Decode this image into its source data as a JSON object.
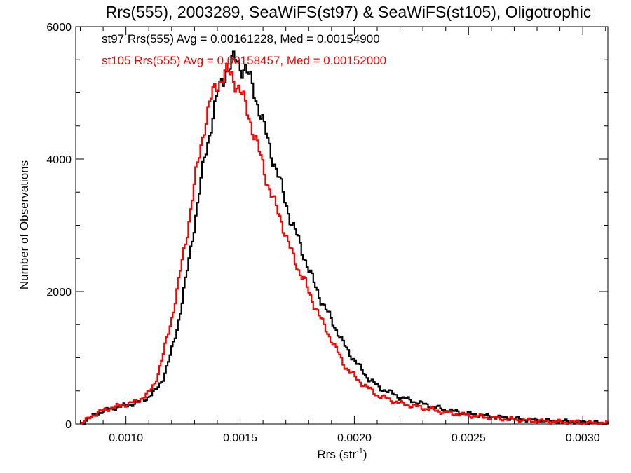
{
  "chart_data": {
    "type": "line",
    "title": "Rrs(555), 2003289, SeaWiFS(st97) & SeaWiFS(st105), Oligotrophic",
    "xlabel": "Rrs (str",
    "xlabel_sup": "-1",
    "xlabel_close": ")",
    "ylabel": "Number of Observations",
    "xlim": [
      0.00078,
      0.00311
    ],
    "ylim": [
      0,
      6000
    ],
    "x_ticks": [
      0.001,
      0.0015,
      0.002,
      0.0025,
      0.003
    ],
    "x_tick_labels": [
      "0.0010",
      "0.0015",
      "0.0020",
      "0.0025",
      "0.0030"
    ],
    "y_ticks": [
      0,
      2000,
      4000,
      6000
    ],
    "y_tick_labels": [
      "0",
      "2000",
      "4000",
      "6000"
    ],
    "grid": false,
    "step": true,
    "annotations": [
      {
        "text": "st97 Rrs(555) Avg = 0.00161228, Med = 0.00154900",
        "color": "#000000"
      },
      {
        "text": "st105 Rrs(555) Avg = 0.00158457, Med = 0.00152000",
        "color": "#ff0000"
      }
    ],
    "series": [
      {
        "name": "st97",
        "color": "#000000",
        "x": [
          0.0008,
          0.00085,
          0.0009,
          0.00095,
          0.001,
          0.00105,
          0.0011,
          0.00113,
          0.00116,
          0.00118,
          0.0012,
          0.00122,
          0.00124,
          0.00126,
          0.00128,
          0.0013,
          0.00132,
          0.00134,
          0.00136,
          0.00138,
          0.0014,
          0.00142,
          0.00144,
          0.00146,
          0.00148,
          0.0015,
          0.00152,
          0.00154,
          0.00156,
          0.00158,
          0.0016,
          0.00162,
          0.00165,
          0.00168,
          0.0017,
          0.00172,
          0.00175,
          0.00178,
          0.0018,
          0.00183,
          0.00186,
          0.0019,
          0.00195,
          0.002,
          0.00205,
          0.0021,
          0.0022,
          0.0023,
          0.0024,
          0.0025,
          0.0026,
          0.0027,
          0.0028,
          0.0029,
          0.003,
          0.00311
        ],
        "y": [
          0,
          120,
          200,
          250,
          280,
          330,
          420,
          520,
          700,
          900,
          1150,
          1450,
          1800,
          2200,
          2650,
          3100,
          3550,
          4000,
          4350,
          4700,
          5000,
          5200,
          5350,
          5450,
          5500,
          5400,
          5350,
          5200,
          5000,
          4750,
          4500,
          4250,
          3900,
          3550,
          3300,
          3050,
          2800,
          2500,
          2300,
          2050,
          1800,
          1550,
          1200,
          950,
          720,
          560,
          400,
          300,
          210,
          150,
          110,
          80,
          55,
          40,
          25,
          10
        ]
      },
      {
        "name": "st105",
        "color": "#ff0000",
        "x": [
          0.0008,
          0.00085,
          0.0009,
          0.00095,
          0.001,
          0.00105,
          0.0011,
          0.00112,
          0.00114,
          0.00116,
          0.00118,
          0.0012,
          0.00122,
          0.00124,
          0.00126,
          0.00128,
          0.0013,
          0.00132,
          0.00134,
          0.00136,
          0.00138,
          0.0014,
          0.00142,
          0.00144,
          0.00146,
          0.00148,
          0.0015,
          0.00152,
          0.00154,
          0.00156,
          0.00158,
          0.0016,
          0.00162,
          0.00165,
          0.00168,
          0.0017,
          0.00172,
          0.00175,
          0.00178,
          0.0018,
          0.00183,
          0.00186,
          0.0019,
          0.00195,
          0.002,
          0.00205,
          0.0021,
          0.0022,
          0.0023,
          0.0024,
          0.0025,
          0.0026,
          0.0027,
          0.0028,
          0.0029,
          0.003,
          0.00311
        ],
        "y": [
          0,
          130,
          210,
          260,
          300,
          350,
          480,
          600,
          800,
          1050,
          1350,
          1650,
          2000,
          2400,
          2800,
          3250,
          3700,
          4100,
          4500,
          4800,
          5000,
          5150,
          5250,
          5300,
          5250,
          5150,
          5000,
          4800,
          4600,
          4350,
          4100,
          3850,
          3600,
          3300,
          3050,
          2800,
          2600,
          2350,
          2150,
          1950,
          1750,
          1500,
          1250,
          900,
          700,
          560,
          430,
          310,
          240,
          170,
          130,
          90,
          65,
          45,
          30,
          20,
          8
        ]
      }
    ]
  }
}
